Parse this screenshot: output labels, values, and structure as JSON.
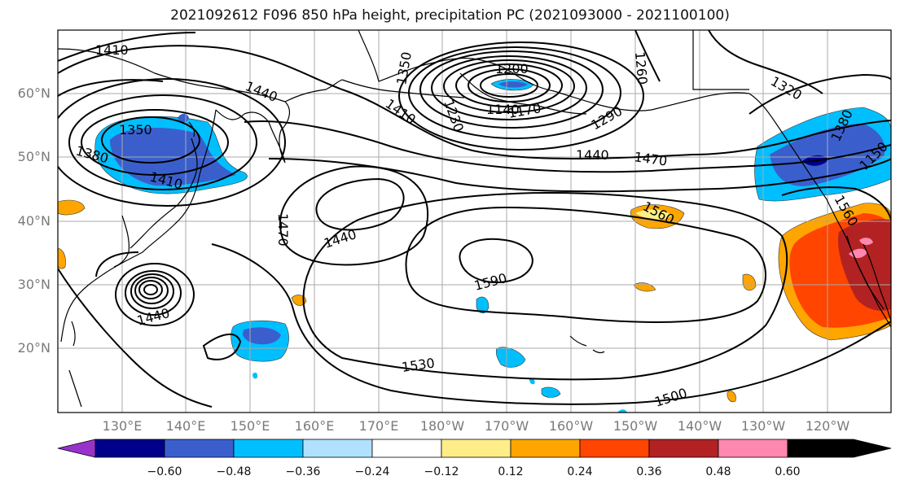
{
  "title": "2021092612 F096 850 hPa height, precipitation PC (2021093000 - 2021100100)",
  "lat_labels": [
    "60°N",
    "50°N",
    "40°N",
    "30°N",
    "20°N"
  ],
  "lon_labels": [
    "130°E",
    "140°E",
    "150°E",
    "160°E",
    "170°E",
    "180°W",
    "170°W",
    "160°W",
    "150°W",
    "140°W",
    "130°W",
    "120°W"
  ],
  "contour_labels": [
    "1410",
    "1440",
    "1350",
    "1380",
    "1410",
    "1470",
    "1440",
    "1440",
    "1350",
    "1230",
    "1200",
    "1140",
    "1170",
    "1410",
    "1260",
    "1290",
    "1320",
    "1380",
    "1150",
    "1440",
    "1470",
    "1560",
    "1590",
    "1530",
    "1500",
    "1560"
  ],
  "colorbar": {
    "colors": [
      "#9932cc",
      "#00008b",
      "#3a5fcd",
      "#00bfff",
      "#b0e2ff",
      "#ffffff",
      "#ffee88",
      "#ffa500",
      "#ff4500",
      "#b22222",
      "#ff88b0"
    ],
    "ticks": [
      "−0.60",
      "−0.48",
      "−0.36",
      "−0.24",
      "−0.12",
      "0.12",
      "0.24",
      "0.36",
      "0.48",
      "0.60"
    ]
  }
}
